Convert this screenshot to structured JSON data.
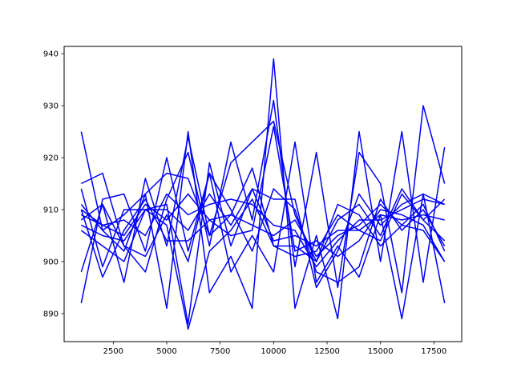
{
  "colors": {
    "line": "#0000ff",
    "axes": "#000000",
    "background": "#ffffff"
  },
  "chart_data": {
    "type": "line",
    "title": "",
    "xlabel": "",
    "ylabel": "",
    "xlim": [
      200,
      18800
    ],
    "ylim": [
      884.6,
      941.4
    ],
    "grid": false,
    "legend": "none",
    "xticks": [
      2500,
      5000,
      7500,
      10000,
      12500,
      15000,
      17500
    ],
    "xtick_labels": [
      "2500",
      "5000",
      "7500",
      "10000",
      "12500",
      "15000",
      "17500"
    ],
    "yticks": [
      890,
      900,
      910,
      920,
      930,
      940
    ],
    "ytick_labels": [
      "890",
      "900",
      "910",
      "920",
      "930",
      "940"
    ],
    "x": [
      1000,
      2000,
      3000,
      4000,
      5000,
      6000,
      7000,
      8000,
      9000,
      10000,
      11000,
      12000,
      13000,
      14000,
      15000,
      16000,
      17000,
      18000
    ],
    "series": [
      {
        "values": [
          925,
          906,
          902,
          913,
          891,
          925,
          894,
          901,
          891,
          939,
          891,
          905,
          889,
          925,
          900,
          925,
          896,
          922
        ]
      },
      {
        "values": [
          915,
          917,
          903,
          898,
          912,
          921,
          903,
          923,
          908,
          931,
          899,
          921,
          895,
          921,
          915,
          894,
          930,
          915
        ]
      },
      {
        "values": [
          892,
          912,
          913,
          902,
          920,
          902,
          917,
          898,
          905,
          898,
          923,
          896,
          903,
          897,
          909,
          889,
          913,
          892
        ]
      },
      {
        "values": [
          898,
          911,
          896,
          916,
          903,
          924,
          905,
          919,
          923,
          927,
          909,
          900,
          911,
          909,
          903,
          907,
          906,
          900
        ]
      },
      {
        "values": [
          911,
          906,
          909,
          913,
          917,
          916,
          905,
          909,
          918,
          903,
          903,
          900,
          908,
          911,
          905,
          914,
          908,
          912
        ]
      },
      {
        "values": [
          914,
          899,
          910,
          910,
          911,
          888,
          919,
          903,
          914,
          912,
          912,
          895,
          902,
          913,
          907,
          911,
          913,
          911
        ]
      },
      {
        "values": [
          908,
          911,
          903,
          901,
          909,
          900,
          917,
          910,
          902,
          914,
          910,
          898,
          896,
          899,
          912,
          906,
          910,
          903
        ]
      },
      {
        "values": [
          910,
          897,
          906,
          912,
          904,
          904,
          908,
          905,
          906,
          926,
          902,
          904,
          901,
          904,
          910,
          909,
          907,
          900
        ]
      },
      {
        "values": [
          906,
          903,
          900,
          910,
          907,
          887,
          902,
          906,
          912,
          903,
          901,
          902,
          909,
          906,
          904,
          913,
          908,
          904
        ]
      },
      {
        "values": [
          909,
          907,
          908,
          905,
          913,
          909,
          911,
          912,
          911,
          907,
          906,
          899,
          904,
          908,
          908,
          910,
          912,
          911
        ]
      },
      {
        "values": [
          907,
          905,
          904,
          910,
          910,
          906,
          913,
          907,
          914,
          904,
          905,
          903,
          906,
          906,
          909,
          908,
          909,
          908
        ]
      },
      {
        "values": [
          910,
          907,
          905,
          911,
          908,
          913,
          908,
          909,
          907,
          905,
          908,
          901,
          905,
          907,
          911,
          907,
          911,
          902
        ]
      }
    ]
  }
}
